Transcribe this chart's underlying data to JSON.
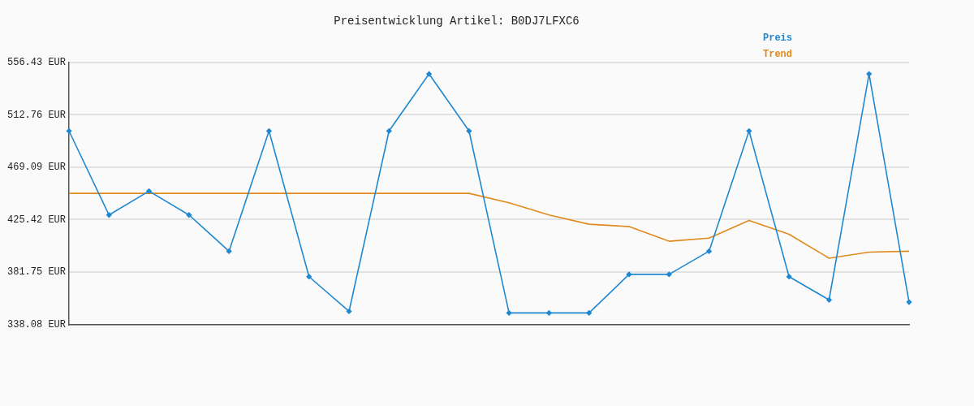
{
  "chart_data": {
    "type": "line",
    "title": "Preisentwicklung Artikel: B0DJ7LFXC6",
    "categories": [
      null,
      null,
      null,
      null,
      null,
      null,
      null,
      null,
      null,
      null,
      null,
      null,
      null,
      null,
      null,
      null,
      null,
      null,
      null,
      null,
      null,
      null
    ],
    "series": [
      {
        "name": "Preis",
        "color": "#1f88d0",
        "marker": "diamond",
        "values": [
          499.3,
          429.3,
          449.2,
          429.3,
          399.1,
          499.3,
          377.9,
          349.0,
          499.3,
          546.8,
          499.3,
          347.7,
          347.7,
          347.7,
          379.8,
          379.8,
          399.1,
          499.3,
          377.9,
          358.6,
          546.8,
          356.7
        ]
      },
      {
        "name": "Trend",
        "color": "#e08a1e",
        "marker": "none",
        "values": [
          447.3,
          447.3,
          447.3,
          447.3,
          447.3,
          447.3,
          447.3,
          447.3,
          447.3,
          447.3,
          447.3,
          439.5,
          429.3,
          421.6,
          419.6,
          407.4,
          410.0,
          424.8,
          413.2,
          393.3,
          398.4,
          399.1
        ]
      }
    ],
    "ylim": [
      338.08,
      556.43
    ],
    "yticks": [
      {
        "value": 338.08,
        "label": "338.08 EUR"
      },
      {
        "value": 381.75,
        "label": "381.75 EUR"
      },
      {
        "value": 425.42,
        "label": "425.42 EUR"
      },
      {
        "value": 469.09,
        "label": "469.09 EUR"
      },
      {
        "value": 512.76,
        "label": "512.76 EUR"
      },
      {
        "value": 556.43,
        "label": "556.43 EUR"
      }
    ],
    "grid": "y",
    "legend": "top right",
    "line_style": "solid"
  }
}
